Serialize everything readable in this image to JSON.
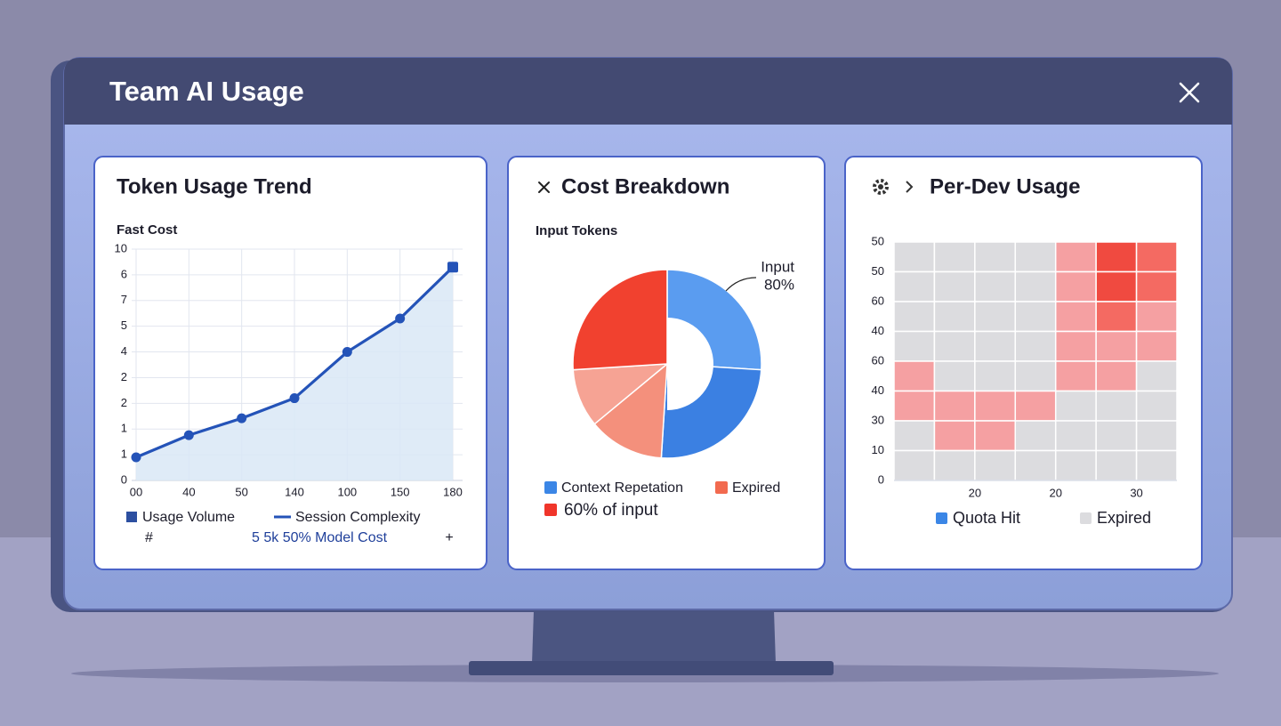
{
  "window": {
    "title": "Team AI Usage"
  },
  "chart_data": [
    {
      "type": "line",
      "title": "Token Usage Trend",
      "y_label": "Fast Cost",
      "categories": [
        "00",
        "40",
        "50",
        "140",
        "100",
        "150",
        "180"
      ],
      "series": [
        {
          "name": "Session Complexity",
          "color": "#2453b8",
          "values": [
            0.9,
            1.76,
            2.42,
            3.2,
            5.0,
            6.3,
            8.3
          ]
        }
      ],
      "area": {
        "name": "Usage Volume",
        "color": "#2c4fa0",
        "fill": "#d9e8f6"
      },
      "ylim": [
        0,
        9
      ],
      "yticks": [
        0,
        1,
        {
          "value": 2,
          "label": "1"
        },
        {
          "value": 3,
          "label": "2"
        },
        {
          "value": 4,
          "label": "2"
        },
        {
          "value": 5,
          "label": "4"
        },
        {
          "value": 6,
          "label": "5"
        },
        7,
        {
          "value": 8,
          "label": "6"
        },
        {
          "value": 9,
          "label": "10"
        }
      ],
      "grid": true,
      "notes": [
        "#",
        "5 5k 50% Model Cost",
        "+"
      ]
    },
    {
      "type": "pie",
      "title": "Cost Breakdown",
      "subtitle": "Input Tokens",
      "values": [
        26,
        25,
        13,
        10,
        26
      ],
      "colors": [
        "#5a9cf0",
        "#3b80e2",
        "#f4907c",
        "#f6a394",
        "#f1412f"
      ],
      "annotation": [
        "Input",
        "80%"
      ],
      "legend": [
        {
          "label": "Context Repetation",
          "color": "#3b86e6"
        },
        {
          "label": "Expired",
          "color": "#f26a4f"
        },
        {
          "label": "60% of input",
          "color": "#f0352a"
        }
      ]
    },
    {
      "type": "heatmap",
      "title": "Per-Dev Usage",
      "values": [
        [
          0,
          0,
          0,
          0,
          1,
          3,
          2
        ],
        [
          0,
          0,
          0,
          0,
          1,
          3,
          2
        ],
        [
          0,
          0,
          0,
          0,
          1,
          2,
          1
        ],
        [
          0,
          0,
          0,
          0,
          1,
          1,
          1
        ],
        [
          1,
          0,
          0,
          0,
          1,
          1,
          0
        ],
        [
          1,
          1,
          1,
          1,
          0,
          0,
          0
        ],
        [
          0,
          1,
          1,
          0,
          0,
          0,
          0
        ],
        [
          0,
          0,
          0,
          0,
          0,
          0,
          0
        ]
      ],
      "colors": [
        "#dcdcdf",
        "#f5a0a2",
        "#f46a62",
        "#f04a40"
      ],
      "xlim": [
        0,
        7
      ],
      "xticks": [
        {
          "value": 2,
          "label": "20"
        },
        {
          "value": 4,
          "label": "20"
        },
        {
          "value": 6,
          "label": "30"
        }
      ],
      "ylim": [
        0,
        8
      ],
      "yticks": [
        0,
        {
          "value": 1,
          "label": "10"
        },
        {
          "value": 2,
          "label": "30"
        },
        {
          "value": 3,
          "label": "40"
        },
        {
          "value": 4,
          "label": "60"
        },
        {
          "value": 5,
          "label": "40"
        },
        {
          "value": 6,
          "label": "60"
        },
        {
          "value": 7,
          "label": "50"
        },
        {
          "value": 8,
          "label": "50"
        }
      ],
      "grid": true,
      "legend": [
        {
          "label": "Quota Hit",
          "color": "#3b86e6"
        },
        {
          "label": "Expired",
          "color": "#dcdcdf"
        }
      ]
    }
  ]
}
